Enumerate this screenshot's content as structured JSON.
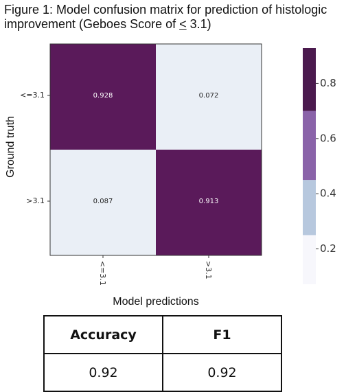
{
  "figure": {
    "title_part1": "Figure 1: Model confusion matrix for prediction of histologic improvement (Geboes Score of ",
    "title_underlined": "<",
    "title_part2": " 3.1)"
  },
  "chart_data": {
    "type": "heatmap",
    "rows": [
      "<=3.1",
      ">3.1"
    ],
    "cols": [
      "<=3.1",
      ">3.1"
    ],
    "values": [
      [
        0.928,
        0.072
      ],
      [
        0.087,
        0.913
      ]
    ],
    "value_labels": [
      [
        "0.928",
        "0.072"
      ],
      [
        "0.087",
        "0.913"
      ]
    ],
    "xlabel": "Model predictions",
    "ylabel": "Ground truth",
    "colorbar": {
      "range": [
        0.072,
        0.928
      ],
      "ticks": [
        0.2,
        0.4,
        0.6,
        0.8
      ],
      "tick_labels": [
        "0.2",
        "0.4",
        "0.6",
        "0.8"
      ],
      "bins": [
        {
          "from": 0.072,
          "to": 0.25,
          "color": "#f7f7fc"
        },
        {
          "from": 0.25,
          "to": 0.45,
          "color": "#b7c8de"
        },
        {
          "from": 0.45,
          "to": 0.7,
          "color": "#8a63a9"
        },
        {
          "from": 0.7,
          "to": 0.928,
          "color": "#4b1a4e"
        }
      ]
    },
    "cell_colors": {
      "high": "#5a1a5a",
      "low": "#eaeff6"
    }
  },
  "metrics_table": {
    "headers": [
      "Accuracy",
      "F1"
    ],
    "values": [
      "0.92",
      "0.92"
    ]
  }
}
